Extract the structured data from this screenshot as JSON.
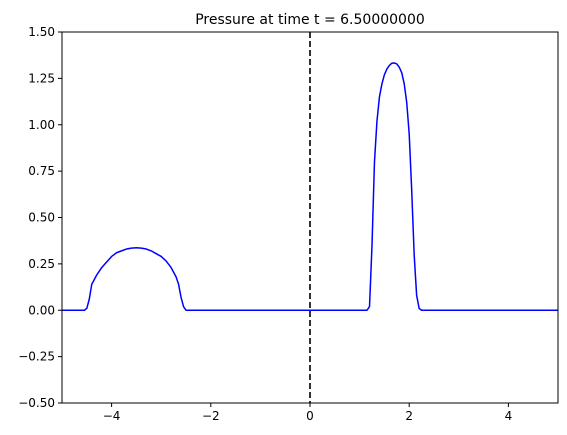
{
  "chart_data": {
    "type": "line",
    "title": "Pressure at time t =     6.50000000",
    "xlabel": "",
    "ylabel": "",
    "xlim": [
      -5,
      5
    ],
    "ylim": [
      -0.5,
      1.5
    ],
    "x_ticks": [
      -4,
      -2,
      0,
      2,
      4
    ],
    "x_tick_labels": [
      "−4",
      "−2",
      "0",
      "2",
      "4"
    ],
    "y_ticks": [
      -0.5,
      -0.25,
      0.0,
      0.25,
      0.5,
      0.75,
      1.0,
      1.25,
      1.5
    ],
    "y_tick_labels": [
      "−0.50",
      "−0.25",
      "0.00",
      "0.25",
      "0.50",
      "0.75",
      "1.00",
      "1.25",
      "1.50"
    ],
    "grid": false,
    "vertical_line": {
      "x": 0,
      "style": "dashed",
      "color": "#000000"
    },
    "series": [
      {
        "color": "#0000ff",
        "x": [
          -5.0,
          -4.55,
          -4.5,
          -4.45,
          -4.4,
          -4.3,
          -4.2,
          -4.1,
          -4.0,
          -3.9,
          -3.8,
          -3.7,
          -3.6,
          -3.5,
          -3.4,
          -3.3,
          -3.2,
          -3.1,
          -3.0,
          -2.9,
          -2.8,
          -2.7,
          -2.65,
          -2.6,
          -2.55,
          -2.5,
          -2.45,
          1.15,
          1.2,
          1.25,
          1.3,
          1.35,
          1.4,
          1.45,
          1.5,
          1.55,
          1.6,
          1.65,
          1.7,
          1.75,
          1.8,
          1.85,
          1.9,
          1.95,
          2.0,
          2.05,
          2.1,
          2.15,
          2.2,
          2.25,
          2.3,
          2.35,
          5.0
        ],
        "y": [
          0.0,
          0.0,
          0.01,
          0.06,
          0.14,
          0.19,
          0.23,
          0.26,
          0.29,
          0.31,
          0.32,
          0.33,
          0.335,
          0.337,
          0.335,
          0.33,
          0.32,
          0.305,
          0.29,
          0.265,
          0.23,
          0.18,
          0.14,
          0.07,
          0.02,
          0.0,
          0.0,
          0.0,
          0.02,
          0.35,
          0.8,
          1.02,
          1.15,
          1.22,
          1.27,
          1.3,
          1.32,
          1.332,
          1.333,
          1.328,
          1.31,
          1.28,
          1.22,
          1.12,
          0.95,
          0.65,
          0.3,
          0.08,
          0.01,
          0.0,
          0.0,
          0.0,
          0.0
        ]
      }
    ]
  }
}
